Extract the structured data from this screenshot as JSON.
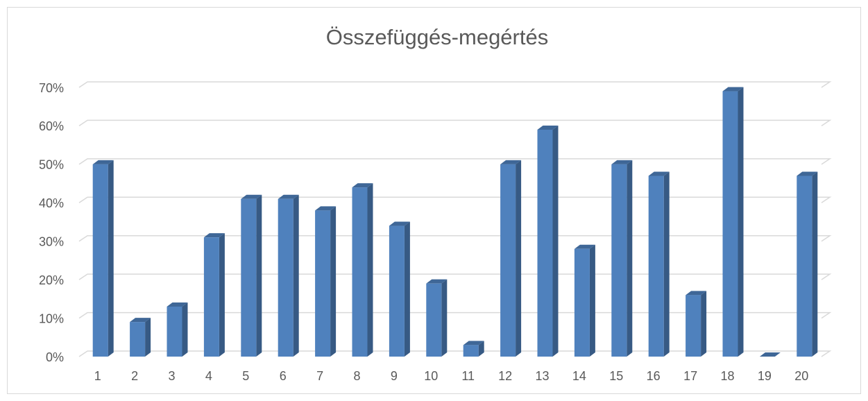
{
  "chart_data": {
    "type": "bar",
    "title": "Összefüggés-megértés",
    "categories": [
      "1",
      "2",
      "3",
      "4",
      "5",
      "6",
      "7",
      "8",
      "9",
      "10",
      "11",
      "12",
      "13",
      "14",
      "15",
      "16",
      "17",
      "18",
      "19",
      "20"
    ],
    "values": [
      50,
      9,
      13,
      31,
      41,
      41,
      38,
      44,
      34,
      19,
      3,
      50,
      59,
      28,
      50,
      47,
      16,
      69,
      0,
      47
    ],
    "color": "#4f81bd",
    "ylim": [
      0,
      70
    ],
    "yticks": [
      {
        "value": 0,
        "label": "0%"
      },
      {
        "value": 10,
        "label": "10%"
      },
      {
        "value": 20,
        "label": "20%"
      },
      {
        "value": 30,
        "label": "30%"
      },
      {
        "value": 40,
        "label": "40%"
      },
      {
        "value": 50,
        "label": "50%"
      },
      {
        "value": 60,
        "label": "60%"
      },
      {
        "value": 70,
        "label": "70%"
      }
    ],
    "grid": true
  }
}
